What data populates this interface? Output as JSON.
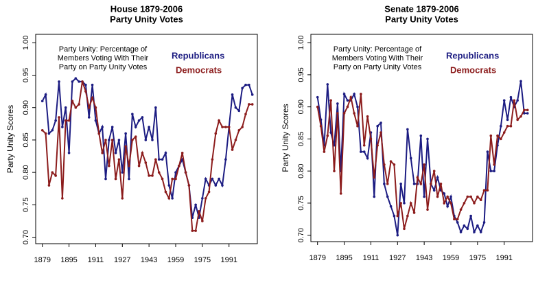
{
  "chart_data": [
    {
      "type": "line",
      "title": "House 1879-2006",
      "subtitle": "Party Unity Votes",
      "ylabel": "Party Unity Scores",
      "annotation": [
        "Party Unity: Percentage of",
        "Members Voting With Their",
        "Party on Party Unity Votes"
      ],
      "x": [
        1879,
        1881,
        1883,
        1885,
        1887,
        1889,
        1891,
        1893,
        1895,
        1897,
        1899,
        1901,
        1903,
        1905,
        1907,
        1909,
        1911,
        1913,
        1915,
        1917,
        1919,
        1921,
        1923,
        1925,
        1927,
        1929,
        1931,
        1933,
        1935,
        1937,
        1939,
        1941,
        1943,
        1945,
        1947,
        1949,
        1951,
        1953,
        1955,
        1957,
        1959,
        1961,
        1963,
        1965,
        1967,
        1969,
        1971,
        1973,
        1975,
        1977,
        1979,
        1981,
        1983,
        1985,
        1987,
        1989,
        1991,
        1993,
        1995,
        1997,
        1999,
        2001,
        2003,
        2005
      ],
      "series": [
        {
          "name": "Republicans",
          "color": "#1c1c82",
          "values": [
            0.91,
            0.92,
            0.86,
            0.865,
            0.88,
            0.94,
            0.87,
            0.9,
            0.83,
            0.94,
            0.945,
            0.94,
            0.94,
            0.935,
            0.885,
            0.935,
            0.88,
            0.86,
            0.87,
            0.79,
            0.85,
            0.87,
            0.83,
            0.85,
            0.8,
            0.86,
            0.79,
            0.89,
            0.87,
            0.88,
            0.885,
            0.85,
            0.87,
            0.85,
            0.9,
            0.82,
            0.82,
            0.83,
            0.78,
            0.76,
            0.8,
            0.81,
            0.82,
            0.8,
            0.78,
            0.73,
            0.75,
            0.73,
            0.76,
            0.79,
            0.78,
            0.79,
            0.78,
            0.79,
            0.78,
            0.82,
            0.87,
            0.92,
            0.9,
            0.895,
            0.93,
            0.935,
            0.935,
            0.92
          ]
        },
        {
          "name": "Democrats",
          "color": "#8c1c1c",
          "values": [
            0.865,
            0.86,
            0.78,
            0.8,
            0.795,
            0.885,
            0.76,
            0.88,
            0.88,
            0.91,
            0.9,
            0.905,
            0.94,
            0.925,
            0.9,
            0.915,
            0.9,
            0.86,
            0.83,
            0.85,
            0.81,
            0.85,
            0.79,
            0.82,
            0.76,
            0.84,
            0.81,
            0.85,
            0.855,
            0.81,
            0.83,
            0.815,
            0.795,
            0.795,
            0.82,
            0.8,
            0.79,
            0.77,
            0.76,
            0.79,
            0.79,
            0.81,
            0.83,
            0.8,
            0.78,
            0.71,
            0.71,
            0.74,
            0.725,
            0.76,
            0.77,
            0.82,
            0.86,
            0.88,
            0.87,
            0.87,
            0.87,
            0.835,
            0.85,
            0.865,
            0.87,
            0.89,
            0.905,
            0.905
          ]
        }
      ],
      "xlim": [
        1875,
        2008
      ],
      "xticks": [
        1879,
        1895,
        1911,
        1927,
        1943,
        1959,
        1975,
        1991
      ],
      "ylim": [
        0.69,
        1.013
      ],
      "yticks": [
        {
          "value": 0.7,
          "label": "0.70"
        },
        {
          "value": 0.75,
          "label": "0.75"
        },
        {
          "value": 0.8,
          "label": "0.80"
        },
        {
          "value": 0.85,
          "label": "0.85"
        },
        {
          "value": 0.9,
          "label": "0.90"
        },
        {
          "value": 0.95,
          "label": "0.95"
        },
        {
          "value": 1.0,
          "label": "1.00"
        }
      ]
    },
    {
      "type": "line",
      "title": "Senate 1879-2006",
      "subtitle": "Party Unity Votes",
      "ylabel": "Party Unity Scores",
      "annotation": [
        "Party Unity: Percentage of",
        "Members Voting With Their",
        "Party on Party Unity Votes"
      ],
      "x": [
        1879,
        1881,
        1883,
        1885,
        1887,
        1889,
        1891,
        1893,
        1895,
        1897,
        1899,
        1901,
        1903,
        1905,
        1907,
        1909,
        1911,
        1913,
        1915,
        1917,
        1919,
        1921,
        1923,
        1925,
        1927,
        1929,
        1931,
        1933,
        1935,
        1937,
        1939,
        1941,
        1943,
        1945,
        1947,
        1949,
        1951,
        1953,
        1955,
        1957,
        1959,
        1961,
        1963,
        1965,
        1967,
        1969,
        1971,
        1973,
        1975,
        1977,
        1979,
        1981,
        1983,
        1985,
        1987,
        1989,
        1991,
        1993,
        1995,
        1997,
        1999,
        2001,
        2003,
        2005
      ],
      "series": [
        {
          "name": "Republicans",
          "color": "#1c1c82",
          "values": [
            0.915,
            0.88,
            0.84,
            0.935,
            0.86,
            0.84,
            0.905,
            0.8,
            0.92,
            0.91,
            0.91,
            0.92,
            0.9,
            0.83,
            0.83,
            0.82,
            0.86,
            0.76,
            0.87,
            0.875,
            0.78,
            0.76,
            0.745,
            0.73,
            0.7,
            0.78,
            0.75,
            0.865,
            0.82,
            0.78,
            0.78,
            0.855,
            0.76,
            0.85,
            0.78,
            0.77,
            0.79,
            0.77,
            0.765,
            0.745,
            0.76,
            0.73,
            0.72,
            0.705,
            0.715,
            0.71,
            0.73,
            0.705,
            0.715,
            0.705,
            0.72,
            0.83,
            0.8,
            0.8,
            0.84,
            0.87,
            0.91,
            0.88,
            0.915,
            0.9,
            0.91,
            0.94,
            0.89,
            0.89
          ]
        },
        {
          "name": "Democrats",
          "color": "#8c1c1c",
          "values": [
            0.9,
            0.87,
            0.83,
            0.855,
            0.91,
            0.8,
            0.89,
            0.765,
            0.89,
            0.9,
            0.915,
            0.89,
            0.87,
            0.92,
            0.84,
            0.885,
            0.85,
            0.79,
            0.84,
            0.86,
            0.81,
            0.78,
            0.815,
            0.81,
            0.73,
            0.75,
            0.71,
            0.73,
            0.75,
            0.735,
            0.79,
            0.78,
            0.81,
            0.74,
            0.78,
            0.8,
            0.76,
            0.78,
            0.75,
            0.76,
            0.75,
            0.725,
            0.725,
            0.74,
            0.75,
            0.76,
            0.76,
            0.75,
            0.76,
            0.755,
            0.77,
            0.77,
            0.855,
            0.81,
            0.855,
            0.85,
            0.86,
            0.87,
            0.87,
            0.91,
            0.88,
            0.885,
            0.895,
            0.895
          ]
        }
      ],
      "xlim": [
        1875,
        2008
      ],
      "xticks": [
        1879,
        1895,
        1911,
        1927,
        1943,
        1959,
        1975,
        1991
      ],
      "ylim": [
        0.69,
        1.013
      ],
      "yticks": [
        {
          "value": 0.7,
          "label": "0.70"
        },
        {
          "value": 0.75,
          "label": "0.75"
        },
        {
          "value": 0.8,
          "label": "0.80"
        },
        {
          "value": 0.85,
          "label": "0.85"
        },
        {
          "value": 0.9,
          "label": "0.90"
        },
        {
          "value": 0.95,
          "label": "0.95"
        },
        {
          "value": 1.0,
          "label": "1.00"
        }
      ]
    }
  ]
}
